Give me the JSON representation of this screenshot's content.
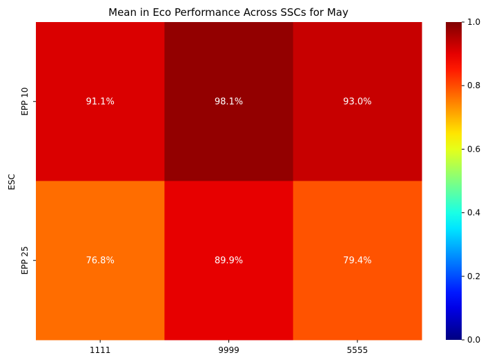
{
  "chart_data": {
    "type": "heatmap",
    "title": "Mean in Eco Performance Across SSCs for May",
    "xlabel": "",
    "ylabel": "ESC",
    "x_categories": [
      "1111",
      "9999",
      "5555"
    ],
    "y_categories": [
      "EPP 10",
      "EPP 25"
    ],
    "values": [
      [
        0.911,
        0.981,
        0.93
      ],
      [
        0.768,
        0.899,
        0.794
      ]
    ],
    "cell_labels": [
      [
        "91.1%",
        "98.1%",
        "93.0%"
      ],
      [
        "76.8%",
        "89.9%",
        "79.4%"
      ]
    ],
    "value_range": [
      0.0,
      1.0
    ],
    "colormap": "jet",
    "colorbar_ticks": [
      "0.0",
      "0.2",
      "0.4",
      "0.6",
      "0.8",
      "1.0"
    ],
    "colorbar_tick_values": [
      0.0,
      0.2,
      0.4,
      0.6,
      0.8,
      1.0
    ],
    "annotation_color": "#ffffff"
  }
}
